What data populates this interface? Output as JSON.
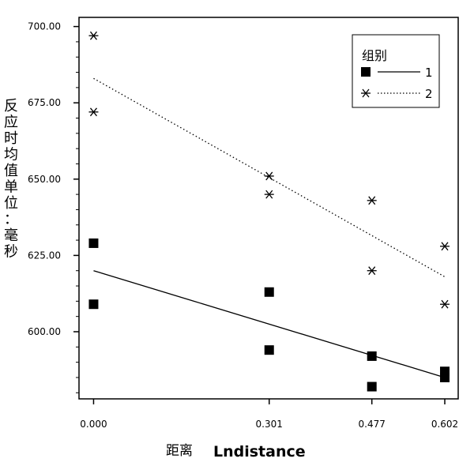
{
  "chart_data": {
    "type": "scatter",
    "title": "",
    "xlabel_cn": "距离",
    "xlabel_en": "Lndistance",
    "ylabel": "反应时均值单位：毫秒",
    "x_ticks": [
      {
        "value": 0.0,
        "label": "0.000"
      },
      {
        "value": 0.301,
        "label": "0.301"
      },
      {
        "value": 0.477,
        "label": "0.477"
      },
      {
        "value": 0.602,
        "label": "0.602"
      }
    ],
    "y_ticks": [
      {
        "value": 600,
        "label": "600.00"
      },
      {
        "value": 625,
        "label": "625.00"
      },
      {
        "value": 650,
        "label": "650.00"
      },
      {
        "value": 675,
        "label": "675.00"
      },
      {
        "value": 700,
        "label": "700.00"
      }
    ],
    "xlim": [
      -0.025,
      0.625
    ],
    "ylim": [
      578,
      703
    ],
    "legend": {
      "title": "组别",
      "position": "top-right",
      "entries": [
        {
          "label": "1",
          "marker": "square",
          "line": "solid"
        },
        {
          "label": "2",
          "marker": "asterisk",
          "line": "dotted"
        }
      ]
    },
    "series": [
      {
        "name": "1",
        "marker": "square",
        "points": [
          {
            "x": 0.0,
            "y": 629
          },
          {
            "x": 0.0,
            "y": 609
          },
          {
            "x": 0.301,
            "y": 613
          },
          {
            "x": 0.301,
            "y": 594
          },
          {
            "x": 0.477,
            "y": 592
          },
          {
            "x": 0.477,
            "y": 582
          },
          {
            "x": 0.602,
            "y": 587
          },
          {
            "x": 0.602,
            "y": 585
          }
        ],
        "fit_line": {
          "x": [
            0.0,
            0.602
          ],
          "y": [
            620,
            585
          ],
          "style": "solid"
        }
      },
      {
        "name": "2",
        "marker": "asterisk",
        "points": [
          {
            "x": 0.0,
            "y": 697
          },
          {
            "x": 0.0,
            "y": 672
          },
          {
            "x": 0.301,
            "y": 651
          },
          {
            "x": 0.301,
            "y": 645
          },
          {
            "x": 0.477,
            "y": 643
          },
          {
            "x": 0.477,
            "y": 620
          },
          {
            "x": 0.602,
            "y": 628
          },
          {
            "x": 0.602,
            "y": 609
          }
        ],
        "fit_line": {
          "x": [
            0.0,
            0.602
          ],
          "y": [
            683,
            618
          ],
          "style": "dotted"
        }
      }
    ]
  }
}
